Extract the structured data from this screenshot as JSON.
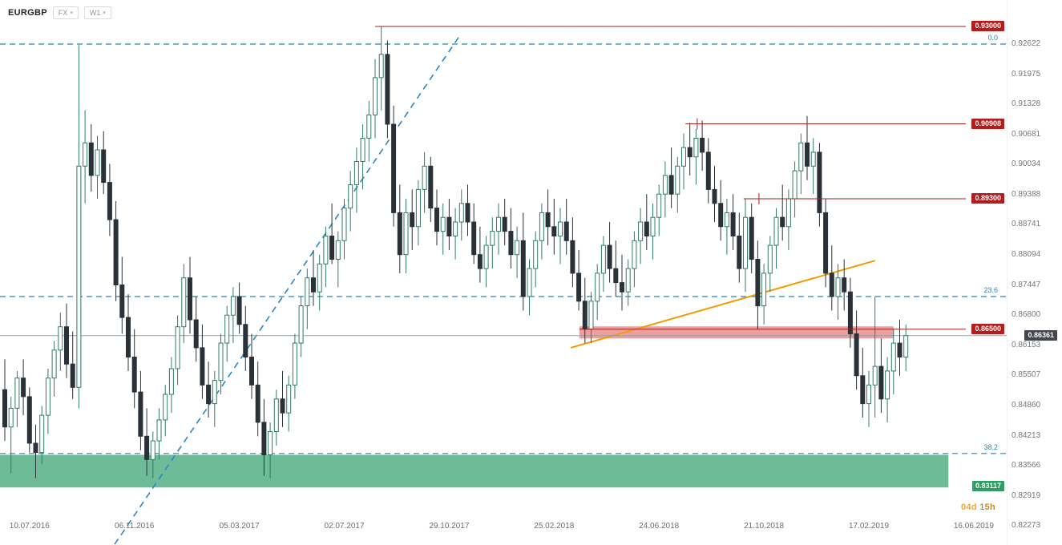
{
  "header": {
    "symbol": "EURGBP",
    "market_label": "FX",
    "timeframe_label": "W1"
  },
  "colors": {
    "up_candle": "#2e7d64",
    "down_candle": "#2b3139",
    "level_red_line": "#a32020",
    "label_red_bg": "#b71c1c",
    "label_green_bg": "#2e9e63",
    "label_current_bg": "#43474d",
    "fib_blue": "#2787b8",
    "zone_green": "#5eb48c",
    "zone_red": "#e25d5d",
    "trend_orange": "#f59b00",
    "current_line_gray": "#9aa0a6",
    "countdown_days": "#f5a623",
    "countdown_hours": "#b9912f"
  },
  "chart_data": {
    "type": "candlestick",
    "title": "EURGBP weekly candlestick chart",
    "symbol": "EURGBP",
    "timeframe": "W1",
    "grid": "off",
    "legend": "none",
    "price_axis_labels": [
      "0.92622",
      "0.91975",
      "0.91328",
      "0.90681",
      "0.90034",
      "0.89388",
      "0.88741",
      "0.88094",
      "0.87447",
      "0.86800",
      "0.86153",
      "0.85507",
      "0.84860",
      "0.84213",
      "0.83566",
      "0.82919",
      "0.82273"
    ],
    "time_axis_labels": [
      {
        "label": "10.07.2016",
        "week": 4
      },
      {
        "label": "06.11.2016",
        "week": 21
      },
      {
        "label": "05.03.2017",
        "week": 38
      },
      {
        "label": "02.07.2017",
        "week": 55
      },
      {
        "label": "29.10.2017",
        "week": 72
      },
      {
        "label": "25.02.2018",
        "week": 89
      },
      {
        "label": "24.06.2018",
        "week": 106
      },
      {
        "label": "21.10.2018",
        "week": 123
      },
      {
        "label": "17.02.2019",
        "week": 140
      },
      {
        "label": "16.06.2019",
        "week": 157
      }
    ],
    "y_range": [
      0.82273,
      0.93
    ],
    "current_price": 0.86361,
    "current_price_label": "0.86361",
    "countdown": {
      "days": "04d",
      "hours": "15h"
    },
    "levels": [
      {
        "label": "0.93000",
        "price": 0.93,
        "start_week": 60.0,
        "tick_week": null
      },
      {
        "label": "0.90908",
        "price": 0.90908,
        "start_week": 110.3,
        "tick_week": 112.2
      },
      {
        "label": "0.89300",
        "price": 0.893,
        "start_week": 119.7,
        "tick_week": 122.2
      },
      {
        "label": "0.86500",
        "price": 0.865,
        "start_week": 93.1,
        "tick_week": null
      }
    ],
    "fib_levels": [
      {
        "label": "0.0",
        "price": 0.92622
      },
      {
        "label": "23.6",
        "price": 0.872
      },
      {
        "label": "38.2",
        "price": 0.8383
      }
    ],
    "zones": [
      {
        "name": "support-zone",
        "label": "0.83117",
        "label_price": 0.83117,
        "price_top": 0.838,
        "price_bottom": 0.831,
        "week_start": -0.8,
        "week_end": 152.9,
        "color": "#5eb48c",
        "opacity": 0.9
      },
      {
        "name": "resistance-zone",
        "label": null,
        "price_top": 0.8656,
        "price_bottom": 0.863,
        "week_start": 93.1,
        "week_end": 144.0,
        "color": "#e25d5d",
        "opacity": 0.6
      }
    ],
    "trendlines": [
      {
        "name": "ascending-dashed-trendline",
        "week1": 17.8,
        "price1": 0.8188,
        "week2": 73.6,
        "price2": 0.9278,
        "color": "#2a87c8",
        "width": 1.6,
        "dash": "8 6"
      },
      {
        "name": "orange-trendline",
        "week1": 91.7,
        "price1": 0.861,
        "week2": 141.0,
        "price2": 0.8797,
        "color": "#f59b00",
        "width": 2,
        "dash": null
      }
    ],
    "candles": [
      [
        0.852,
        0.8585,
        0.841,
        0.844
      ],
      [
        0.844,
        0.8505,
        0.834,
        0.848
      ],
      [
        0.848,
        0.856,
        0.844,
        0.8545
      ],
      [
        0.8545,
        0.8585,
        0.8465,
        0.8505
      ],
      [
        0.8505,
        0.8525,
        0.8385,
        0.8405
      ],
      [
        0.8405,
        0.8445,
        0.833,
        0.8385
      ],
      [
        0.8385,
        0.8485,
        0.836,
        0.8465
      ],
      [
        0.8465,
        0.8565,
        0.8425,
        0.8545
      ],
      [
        0.8545,
        0.8625,
        0.8505,
        0.8605
      ],
      [
        0.8605,
        0.8685,
        0.856,
        0.8655
      ],
      [
        0.8655,
        0.8705,
        0.8545,
        0.8575
      ],
      [
        0.8575,
        0.8645,
        0.85,
        0.8525
      ],
      [
        0.8525,
        0.926,
        0.848,
        0.9
      ],
      [
        0.9,
        0.912,
        0.892,
        0.905
      ],
      [
        0.905,
        0.909,
        0.8945,
        0.898
      ],
      [
        0.898,
        0.9065,
        0.893,
        0.9035
      ],
      [
        0.9035,
        0.9075,
        0.894,
        0.8965
      ],
      [
        0.8965,
        0.9005,
        0.885,
        0.8885
      ],
      [
        0.8885,
        0.8925,
        0.871,
        0.8745
      ],
      [
        0.8745,
        0.8805,
        0.864,
        0.8675
      ],
      [
        0.8675,
        0.8725,
        0.856,
        0.859
      ],
      [
        0.859,
        0.865,
        0.848,
        0.8515
      ],
      [
        0.8515,
        0.856,
        0.839,
        0.842
      ],
      [
        0.842,
        0.848,
        0.8335,
        0.837
      ],
      [
        0.837,
        0.843,
        0.833,
        0.841
      ],
      [
        0.841,
        0.848,
        0.837,
        0.8455
      ],
      [
        0.8455,
        0.853,
        0.842,
        0.851
      ],
      [
        0.851,
        0.859,
        0.847,
        0.8565
      ],
      [
        0.8565,
        0.868,
        0.853,
        0.8655
      ],
      [
        0.8655,
        0.879,
        0.862,
        0.876
      ],
      [
        0.876,
        0.8805,
        0.864,
        0.867
      ],
      [
        0.867,
        0.872,
        0.858,
        0.861
      ],
      [
        0.861,
        0.866,
        0.85,
        0.853
      ],
      [
        0.853,
        0.858,
        0.846,
        0.849
      ],
      [
        0.849,
        0.856,
        0.844,
        0.854
      ],
      [
        0.854,
        0.864,
        0.851,
        0.862
      ],
      [
        0.862,
        0.87,
        0.858,
        0.868
      ],
      [
        0.868,
        0.874,
        0.862,
        0.872
      ],
      [
        0.872,
        0.875,
        0.864,
        0.866
      ],
      [
        0.866,
        0.87,
        0.856,
        0.859
      ],
      [
        0.859,
        0.864,
        0.85,
        0.853
      ],
      [
        0.853,
        0.858,
        0.842,
        0.845
      ],
      [
        0.845,
        0.85,
        0.8335,
        0.838
      ],
      [
        0.838,
        0.845,
        0.833,
        0.843
      ],
      [
        0.843,
        0.852,
        0.84,
        0.85
      ],
      [
        0.85,
        0.856,
        0.844,
        0.847
      ],
      [
        0.847,
        0.855,
        0.843,
        0.853
      ],
      [
        0.853,
        0.864,
        0.85,
        0.862
      ],
      [
        0.862,
        0.872,
        0.859,
        0.87
      ],
      [
        0.87,
        0.878,
        0.865,
        0.876
      ],
      [
        0.876,
        0.882,
        0.87,
        0.873
      ],
      [
        0.873,
        0.881,
        0.869,
        0.879
      ],
      [
        0.879,
        0.887,
        0.874,
        0.885
      ],
      [
        0.885,
        0.892,
        0.879,
        0.88
      ],
      [
        0.88,
        0.886,
        0.874,
        0.884
      ],
      [
        0.884,
        0.893,
        0.88,
        0.891
      ],
      [
        0.891,
        0.899,
        0.886,
        0.896
      ],
      [
        0.896,
        0.904,
        0.89,
        0.901
      ],
      [
        0.901,
        0.909,
        0.895,
        0.906
      ],
      [
        0.906,
        0.914,
        0.901,
        0.911
      ],
      [
        0.911,
        0.923,
        0.906,
        0.919
      ],
      [
        0.919,
        0.93,
        0.912,
        0.924
      ],
      [
        0.924,
        0.927,
        0.906,
        0.909
      ],
      [
        0.909,
        0.913,
        0.887,
        0.89
      ],
      [
        0.89,
        0.896,
        0.877,
        0.881
      ],
      [
        0.881,
        0.893,
        0.877,
        0.89
      ],
      [
        0.89,
        0.895,
        0.882,
        0.887
      ],
      [
        0.887,
        0.897,
        0.883,
        0.895
      ],
      [
        0.895,
        0.903,
        0.89,
        0.9
      ],
      [
        0.9,
        0.902,
        0.888,
        0.891
      ],
      [
        0.891,
        0.895,
        0.883,
        0.886
      ],
      [
        0.886,
        0.892,
        0.881,
        0.889
      ],
      [
        0.889,
        0.893,
        0.882,
        0.885
      ],
      [
        0.885,
        0.891,
        0.88,
        0.888
      ],
      [
        0.888,
        0.895,
        0.884,
        0.892
      ],
      [
        0.892,
        0.896,
        0.885,
        0.888
      ],
      [
        0.888,
        0.892,
        0.879,
        0.881
      ],
      [
        0.881,
        0.887,
        0.875,
        0.878
      ],
      [
        0.878,
        0.885,
        0.874,
        0.883
      ],
      [
        0.883,
        0.889,
        0.878,
        0.886
      ],
      [
        0.886,
        0.892,
        0.881,
        0.889
      ],
      [
        0.889,
        0.893,
        0.883,
        0.886
      ],
      [
        0.886,
        0.891,
        0.878,
        0.881
      ],
      [
        0.881,
        0.887,
        0.876,
        0.884
      ],
      [
        0.884,
        0.89,
        0.869,
        0.872
      ],
      [
        0.872,
        0.88,
        0.868,
        0.878
      ],
      [
        0.878,
        0.886,
        0.874,
        0.884
      ],
      [
        0.884,
        0.892,
        0.88,
        0.89
      ],
      [
        0.89,
        0.895,
        0.883,
        0.887
      ],
      [
        0.887,
        0.893,
        0.881,
        0.885
      ],
      [
        0.885,
        0.891,
        0.879,
        0.888
      ],
      [
        0.888,
        0.893,
        0.881,
        0.884
      ],
      [
        0.884,
        0.889,
        0.874,
        0.877
      ],
      [
        0.877,
        0.882,
        0.869,
        0.871
      ],
      [
        0.871,
        0.876,
        0.862,
        0.865
      ],
      [
        0.865,
        0.873,
        0.862,
        0.871
      ],
      [
        0.871,
        0.879,
        0.867,
        0.877
      ],
      [
        0.877,
        0.885,
        0.873,
        0.883
      ],
      [
        0.883,
        0.888,
        0.875,
        0.878
      ],
      [
        0.878,
        0.884,
        0.872,
        0.875
      ],
      [
        0.875,
        0.881,
        0.869,
        0.873
      ],
      [
        0.873,
        0.88,
        0.87,
        0.878
      ],
      [
        0.878,
        0.886,
        0.874,
        0.884
      ],
      [
        0.884,
        0.891,
        0.879,
        0.888
      ],
      [
        0.888,
        0.894,
        0.882,
        0.885
      ],
      [
        0.885,
        0.892,
        0.88,
        0.889
      ],
      [
        0.889,
        0.896,
        0.885,
        0.894
      ],
      [
        0.894,
        0.901,
        0.889,
        0.898
      ],
      [
        0.898,
        0.904,
        0.891,
        0.894
      ],
      [
        0.894,
        0.902,
        0.89,
        0.9
      ],
      [
        0.9,
        0.907,
        0.895,
        0.904
      ],
      [
        0.904,
        0.9093,
        0.898,
        0.902
      ],
      [
        0.902,
        0.908,
        0.896,
        0.906
      ],
      [
        0.906,
        0.9098,
        0.899,
        0.903
      ],
      [
        0.903,
        0.906,
        0.892,
        0.895
      ],
      [
        0.895,
        0.9,
        0.888,
        0.892
      ],
      [
        0.892,
        0.897,
        0.884,
        0.887
      ],
      [
        0.887,
        0.893,
        0.881,
        0.89
      ],
      [
        0.89,
        0.894,
        0.882,
        0.885
      ],
      [
        0.885,
        0.89,
        0.875,
        0.878
      ],
      [
        0.878,
        0.893,
        0.873,
        0.889
      ],
      [
        0.889,
        0.892,
        0.877,
        0.88
      ],
      [
        0.88,
        0.884,
        0.865,
        0.87
      ],
      [
        0.87,
        0.879,
        0.866,
        0.877
      ],
      [
        0.877,
        0.885,
        0.873,
        0.883
      ],
      [
        0.883,
        0.891,
        0.878,
        0.889
      ],
      [
        0.889,
        0.896,
        0.884,
        0.887
      ],
      [
        0.887,
        0.895,
        0.882,
        0.893
      ],
      [
        0.893,
        0.901,
        0.889,
        0.899
      ],
      [
        0.899,
        0.907,
        0.894,
        0.905
      ],
      [
        0.905,
        0.9108,
        0.897,
        0.9
      ],
      [
        0.9,
        0.906,
        0.894,
        0.903
      ],
      [
        0.903,
        0.905,
        0.887,
        0.89
      ],
      [
        0.89,
        0.893,
        0.874,
        0.877
      ],
      [
        0.877,
        0.883,
        0.869,
        0.872
      ],
      [
        0.872,
        0.879,
        0.867,
        0.876
      ],
      [
        0.876,
        0.88,
        0.869,
        0.873
      ],
      [
        0.873,
        0.876,
        0.861,
        0.864
      ],
      [
        0.864,
        0.869,
        0.852,
        0.855
      ],
      [
        0.855,
        0.861,
        0.846,
        0.849
      ],
      [
        0.849,
        0.856,
        0.844,
        0.853
      ],
      [
        0.853,
        0.872,
        0.846,
        0.857
      ],
      [
        0.857,
        0.863,
        0.847,
        0.85
      ],
      [
        0.85,
        0.859,
        0.845,
        0.856
      ],
      [
        0.856,
        0.865,
        0.851,
        0.862
      ],
      [
        0.862,
        0.867,
        0.855,
        0.859
      ],
      [
        0.859,
        0.866,
        0.856,
        0.8636
      ]
    ]
  }
}
